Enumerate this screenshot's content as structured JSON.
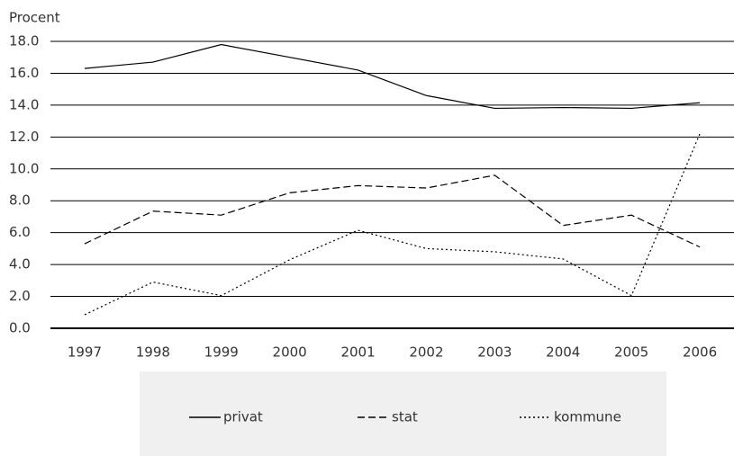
{
  "chart_data": {
    "type": "line",
    "ylabel": "Procent",
    "categories": [
      "1997",
      "1998",
      "1999",
      "2000",
      "2001",
      "2002",
      "2003",
      "2004",
      "2005",
      "2006"
    ],
    "series": [
      {
        "name": "privat",
        "color": "#000000",
        "style": "solid",
        "values": [
          16.3,
          16.7,
          17.8,
          17.0,
          16.2,
          14.6,
          13.8,
          13.85,
          13.8,
          14.15
        ]
      },
      {
        "name": "stat",
        "color": "#000000",
        "style": "dashed",
        "values": [
          5.3,
          7.35,
          7.1,
          8.5,
          8.95,
          8.8,
          9.6,
          6.45,
          7.1,
          5.1
        ]
      },
      {
        "name": "kommune",
        "color": "#000000",
        "style": "dotted",
        "values": [
          0.85,
          2.9,
          2.05,
          4.3,
          6.15,
          5.0,
          4.8,
          4.35,
          2.05,
          12.2
        ]
      }
    ],
    "ylim": [
      0,
      18
    ],
    "yticks": [
      {
        "value": 0,
        "label": "0.0"
      },
      {
        "value": 2,
        "label": "2.0"
      },
      {
        "value": 4,
        "label": "4.0"
      },
      {
        "value": 6,
        "label": "6.0"
      },
      {
        "value": 8,
        "label": "8.0"
      },
      {
        "value": 10,
        "label": "10.0"
      },
      {
        "value": 12,
        "label": "12.0"
      },
      {
        "value": 14,
        "label": "14.0"
      },
      {
        "value": 16,
        "label": "16.0"
      },
      {
        "value": 18,
        "label": "18.0"
      }
    ],
    "grid": true,
    "legend": "bottom"
  }
}
